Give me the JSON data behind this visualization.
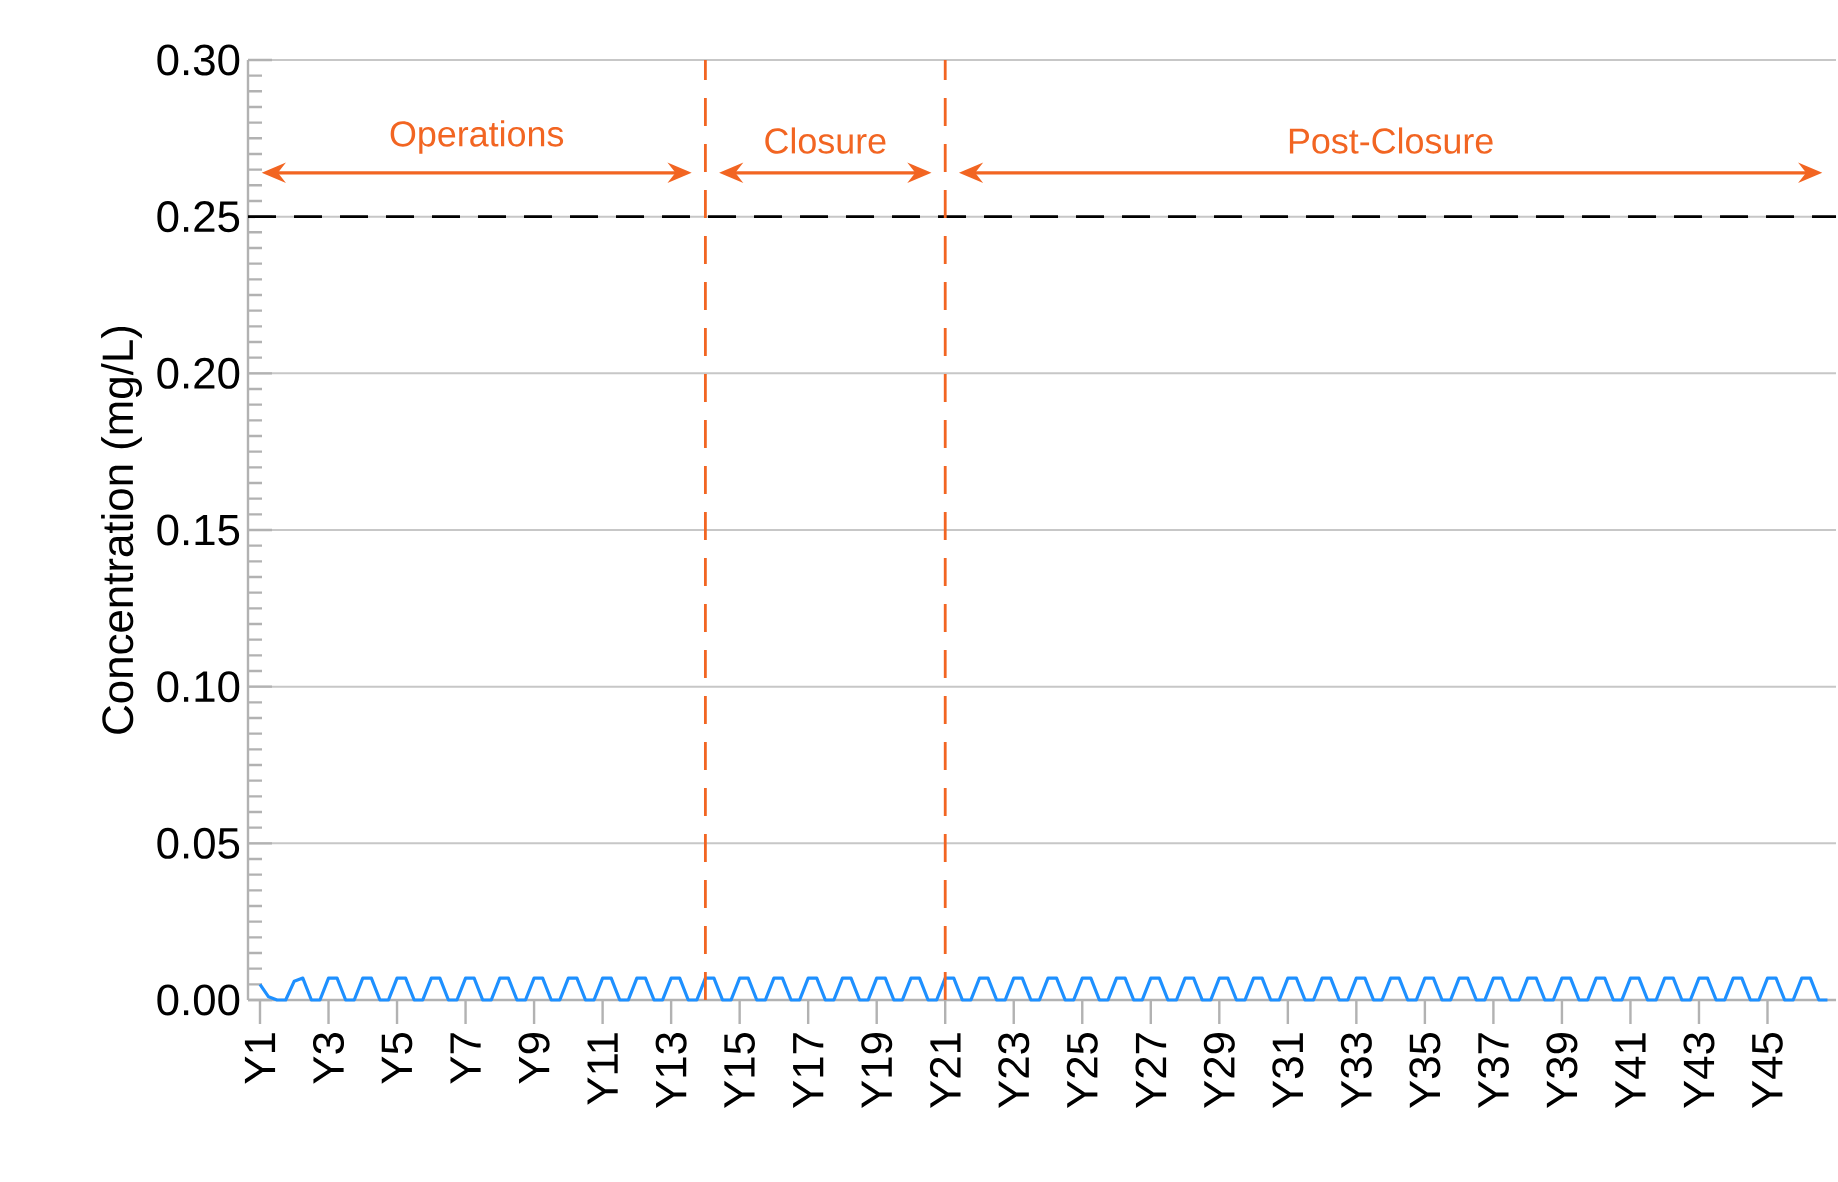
{
  "chart_data": {
    "type": "line",
    "ylabel": "Concentration (mg/L)",
    "categories": [
      "Y1",
      null,
      null,
      null,
      null,
      null,
      null,
      null,
      "Y3",
      null,
      null,
      null,
      null,
      null,
      null,
      null,
      "Y5",
      null,
      null,
      null,
      null,
      null,
      null,
      null,
      "Y7",
      null,
      null,
      null,
      null,
      null,
      null,
      null,
      "Y9",
      null,
      null,
      null,
      null,
      null,
      null,
      null,
      "Y11",
      null,
      null,
      null,
      null,
      null,
      null,
      null,
      "Y13",
      null,
      null,
      null,
      null,
      null,
      null,
      null,
      "Y15",
      null,
      null,
      null,
      null,
      null,
      null,
      null,
      "Y17",
      null,
      null,
      null,
      null,
      null,
      null,
      null,
      "Y19",
      null,
      null,
      null,
      null,
      null,
      null,
      null,
      "Y21",
      null,
      null,
      null,
      null,
      null,
      null,
      null,
      "Y23",
      null,
      null,
      null,
      null,
      null,
      null,
      null,
      "Y25",
      null,
      null,
      null,
      null,
      null,
      null,
      null,
      "Y27",
      null,
      null,
      null,
      null,
      null,
      null,
      null,
      "Y29",
      null,
      null,
      null,
      null,
      null,
      null,
      null,
      "Y31",
      null,
      null,
      null,
      null,
      null,
      null,
      null,
      "Y33",
      null,
      null,
      null,
      null,
      null,
      null,
      null,
      "Y35",
      null,
      null,
      null,
      null,
      null,
      null,
      null,
      "Y37",
      null,
      null,
      null,
      null,
      null,
      null,
      null,
      "Y39",
      null,
      null,
      null,
      null,
      null,
      null,
      null,
      "Y41",
      null,
      null,
      null,
      null,
      null,
      null,
      null,
      "Y43",
      null,
      null,
      null,
      null,
      null,
      null,
      null,
      "Y45",
      null,
      null,
      null,
      null,
      null,
      null,
      null
    ],
    "ylim": [
      0,
      0.3
    ],
    "yticks": [
      {
        "value": 0,
        "label": "0.00"
      },
      {
        "value": 0.05,
        "label": "0.05"
      },
      {
        "value": 0.1,
        "label": "0.10"
      },
      {
        "value": 0.15,
        "label": "0.15"
      },
      {
        "value": 0.2,
        "label": "0.20"
      },
      {
        "value": 0.25,
        "label": "0.25"
      },
      {
        "value": 0.3,
        "label": "0.30"
      }
    ],
    "grid": "y",
    "series": [
      {
        "color": "#1e90ff",
        "values": [
          0.005,
          0.001,
          0,
          0,
          0.006,
          0.007,
          0,
          0,
          0.007,
          0.007,
          0,
          0,
          0.007,
          0.007,
          0,
          0,
          0.007,
          0.007,
          0,
          0,
          0.007,
          0.007,
          0,
          0,
          0.007,
          0.007,
          0,
          0,
          0.007,
          0.007,
          0,
          0,
          0.007,
          0.007,
          0,
          0,
          0.007,
          0.007,
          0,
          0,
          0.007,
          0.007,
          0,
          0,
          0.007,
          0.007,
          0,
          0,
          0.007,
          0.007,
          0,
          0,
          0.007,
          0.007,
          0,
          0,
          0.007,
          0.007,
          0,
          0,
          0.007,
          0.007,
          0,
          0,
          0.007,
          0.007,
          0,
          0,
          0.007,
          0.007,
          0,
          0,
          0.007,
          0.007,
          0,
          0,
          0.007,
          0.007,
          0,
          0,
          0.007,
          0.007,
          0,
          0,
          0.007,
          0.007,
          0,
          0,
          0.007,
          0.007,
          0,
          0,
          0.007,
          0.007,
          0,
          0,
          0.007,
          0.007,
          0,
          0,
          0.007,
          0.007,
          0,
          0,
          0.007,
          0.007,
          0,
          0,
          0.007,
          0.007,
          0,
          0,
          0.007,
          0.007,
          0,
          0,
          0.007,
          0.007,
          0,
          0,
          0.007,
          0.007,
          0,
          0,
          0.007,
          0.007,
          0,
          0,
          0.007,
          0.007,
          0,
          0,
          0.007,
          0.007,
          0,
          0,
          0.007,
          0.007,
          0,
          0,
          0.007,
          0.007,
          0,
          0,
          0.007,
          0.007,
          0,
          0,
          0.007,
          0.007,
          0,
          0,
          0.007,
          0.007,
          0,
          0,
          0.007,
          0.007,
          0,
          0,
          0.007,
          0.007,
          0,
          0,
          0.007,
          0.007,
          0,
          0,
          0.007,
          0.007,
          0,
          0,
          0.007,
          0.007,
          0,
          0,
          0.007,
          0.007,
          0,
          0,
          0.007,
          0.007,
          0,
          0
        ]
      }
    ],
    "ref_lines": [
      {
        "axis": "y",
        "value": 0.25,
        "color": "#000000",
        "line_style": "dashed"
      }
    ],
    "annotations": [
      "Operations",
      "Closure",
      "Post-Closure"
    ]
  }
}
